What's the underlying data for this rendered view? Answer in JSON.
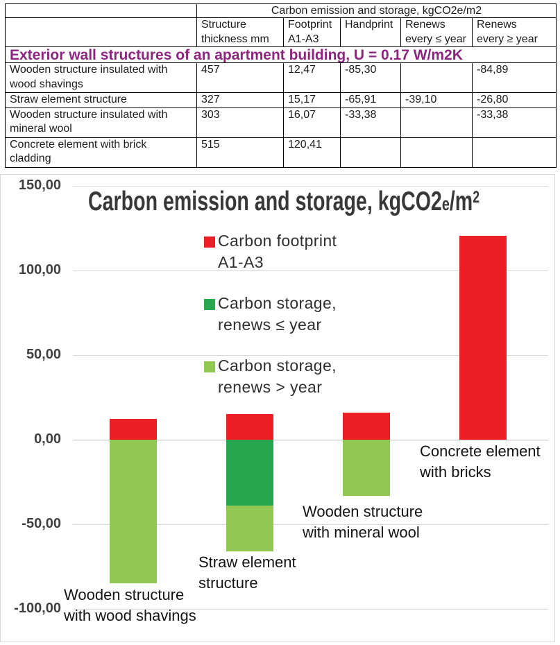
{
  "table": {
    "group_header": "Carbon emission and storage, kgCO2e/m2",
    "columns": [
      "",
      "Structure\nthickness mm",
      "Footprint\nA1-A3",
      "Handprint",
      "Renews\nevery ≤ year",
      "Renews\nevery ≥ year"
    ],
    "section_title": "Exterior wall structures of an apartment building, U = 0.17 W/m2K",
    "rows": [
      {
        "name": "Wooden structure insulated with\nwood shavings",
        "thickness": "457",
        "footprint": "12,47",
        "handprint": "-85,30",
        "renews_le": "",
        "renews_ge": "-84,89"
      },
      {
        "name": "Straw element structure",
        "thickness": "327",
        "footprint": "15,17",
        "handprint": "-65,91",
        "renews_le": "-39,10",
        "renews_ge": "-26,80"
      },
      {
        "name": "Wooden structure insulated with\nmineral wool",
        "thickness": "303",
        "footprint": "16,07",
        "handprint": "-33,38",
        "renews_le": "",
        "renews_ge": "-33,38"
      },
      {
        "name": "Concrete element with brick\ncladding",
        "thickness": "515",
        "footprint": "120,41",
        "handprint": "",
        "renews_le": "",
        "renews_ge": ""
      }
    ]
  },
  "chart_data": {
    "type": "bar",
    "stacked": true,
    "title": "Carbon emission and storage, kgCO2e/m²",
    "title_parts": [
      {
        "text": "Carbon emission and storage, kgCO2",
        "style": "normal"
      },
      {
        "text": "e",
        "style": "sub"
      },
      {
        "text": "/m",
        "style": "normal"
      },
      {
        "text": "2",
        "style": "sup"
      }
    ],
    "categories": [
      "Wooden structure\nwith wood shavings",
      "Straw element\nstructure",
      "Wooden structure\nwith mineral wool",
      "Concrete element\nwith bricks"
    ],
    "series": [
      {
        "name": "Carbon footprint\nA1-A3",
        "color": "#EC2024",
        "values": [
          12.47,
          15.17,
          16.07,
          120.41
        ]
      },
      {
        "name": "Carbon storage,\nrenews ≤ year",
        "color": "#28A750",
        "values": [
          0,
          -39.1,
          0,
          0
        ]
      },
      {
        "name": "Carbon storage,\nrenews > year",
        "color": "#90C853",
        "values": [
          -84.89,
          -26.8,
          -33.38,
          0
        ]
      }
    ],
    "ylabel": "",
    "xlabel": "",
    "ylim": [
      -100,
      150
    ],
    "yticks": [
      {
        "value": 150,
        "label": "150,00"
      },
      {
        "value": 100,
        "label": "100,00"
      },
      {
        "value": 50,
        "label": "50,00"
      },
      {
        "value": 0,
        "label": "0,00"
      },
      {
        "value": -50,
        "label": "-50,00"
      },
      {
        "value": -100,
        "label": "-100,00"
      }
    ],
    "grid": true,
    "legend_position": "inside-top-left"
  }
}
